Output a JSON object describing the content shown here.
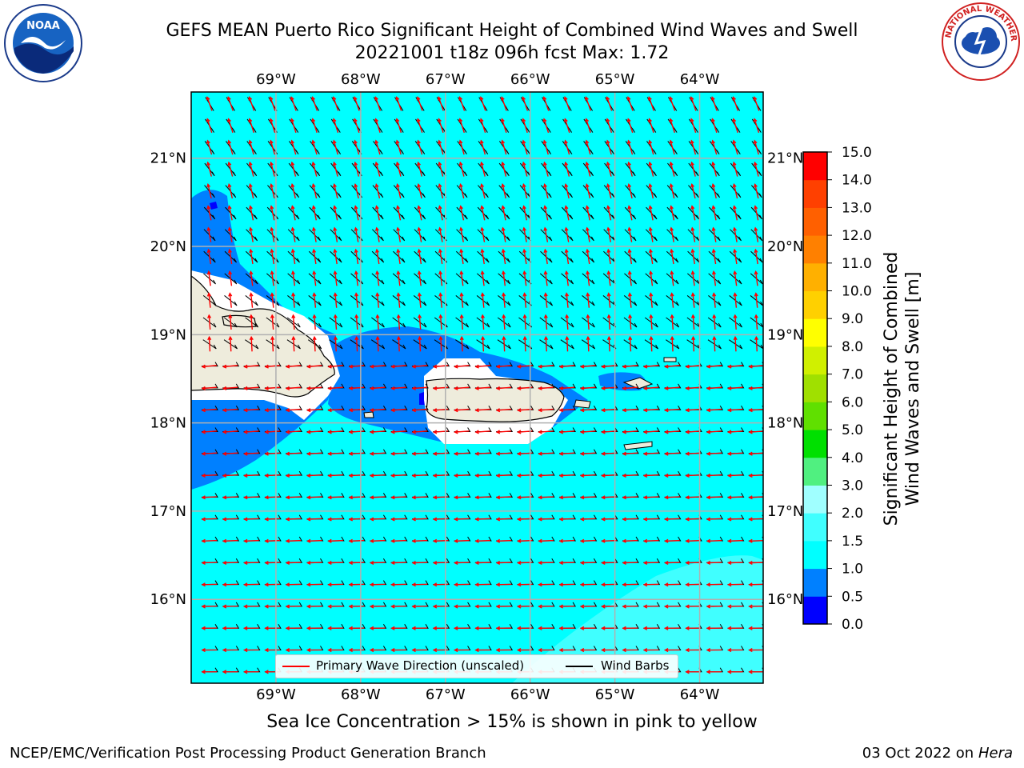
{
  "header": {
    "title_line1": "GEFS MEAN Puerto Rico Significant Height of Combined Wind Waves and Swell",
    "title_line2": "20221001 t18z 096h fcst   Max: 1.72"
  },
  "logos": {
    "left_name": "NOAA",
    "right_name": "NATIONAL WEATHER SERVICE"
  },
  "map": {
    "lon_labels": [
      "69°W",
      "68°W",
      "67°W",
      "66°W",
      "65°W",
      "64°W"
    ],
    "lat_labels": [
      "21°N",
      "20°N",
      "19°N",
      "18°N",
      "17°N",
      "16°N"
    ],
    "lon_values": [
      -69,
      -68,
      -67,
      -66,
      -65,
      -64
    ],
    "lat_values": [
      21,
      20,
      19,
      18,
      17,
      16
    ],
    "lon_range": [
      -70,
      -63.25
    ],
    "lat_range": [
      15.05,
      21.75
    ],
    "ocean_color": "#00ffff",
    "low_wave_color": "#0080ff",
    "land_color": "#eeecdc",
    "grid": true
  },
  "legend": {
    "primary_wave_label": "Primary Wave Direction (unscaled)",
    "wind_barbs_label": "Wind Barbs",
    "primary_wave_color": "#ff0000",
    "wind_barbs_color": "#000000"
  },
  "colorbar": {
    "ticks": [
      "0.0",
      "0.5",
      "1.0",
      "1.5",
      "2.0",
      "3.0",
      "4.0",
      "5.0",
      "6.0",
      "7.0",
      "8.0",
      "9.0",
      "10.0",
      "11.0",
      "12.0",
      "13.0",
      "14.0",
      "15.0"
    ],
    "colors": [
      "#0000ff",
      "#0080ff",
      "#00ffff",
      "#40ffff",
      "#a0ffff",
      "#50f080",
      "#00e000",
      "#60e000",
      "#a0e000",
      "#d0f000",
      "#ffff00",
      "#ffd000",
      "#ffb000",
      "#ff8000",
      "#ff6000",
      "#ff4000",
      "#ff0000"
    ],
    "label_line1": "Significant Height of Combined",
    "label_line2": "Wind Waves and Swell [m]"
  },
  "note": "Sea Ice Concentration > 15% is shown in pink to yellow",
  "footer": {
    "left": "NCEP/EMC/Verification Post Processing Product Generation Branch",
    "right_prefix": "03 Oct 2022 on ",
    "right_italic": "Hera"
  }
}
